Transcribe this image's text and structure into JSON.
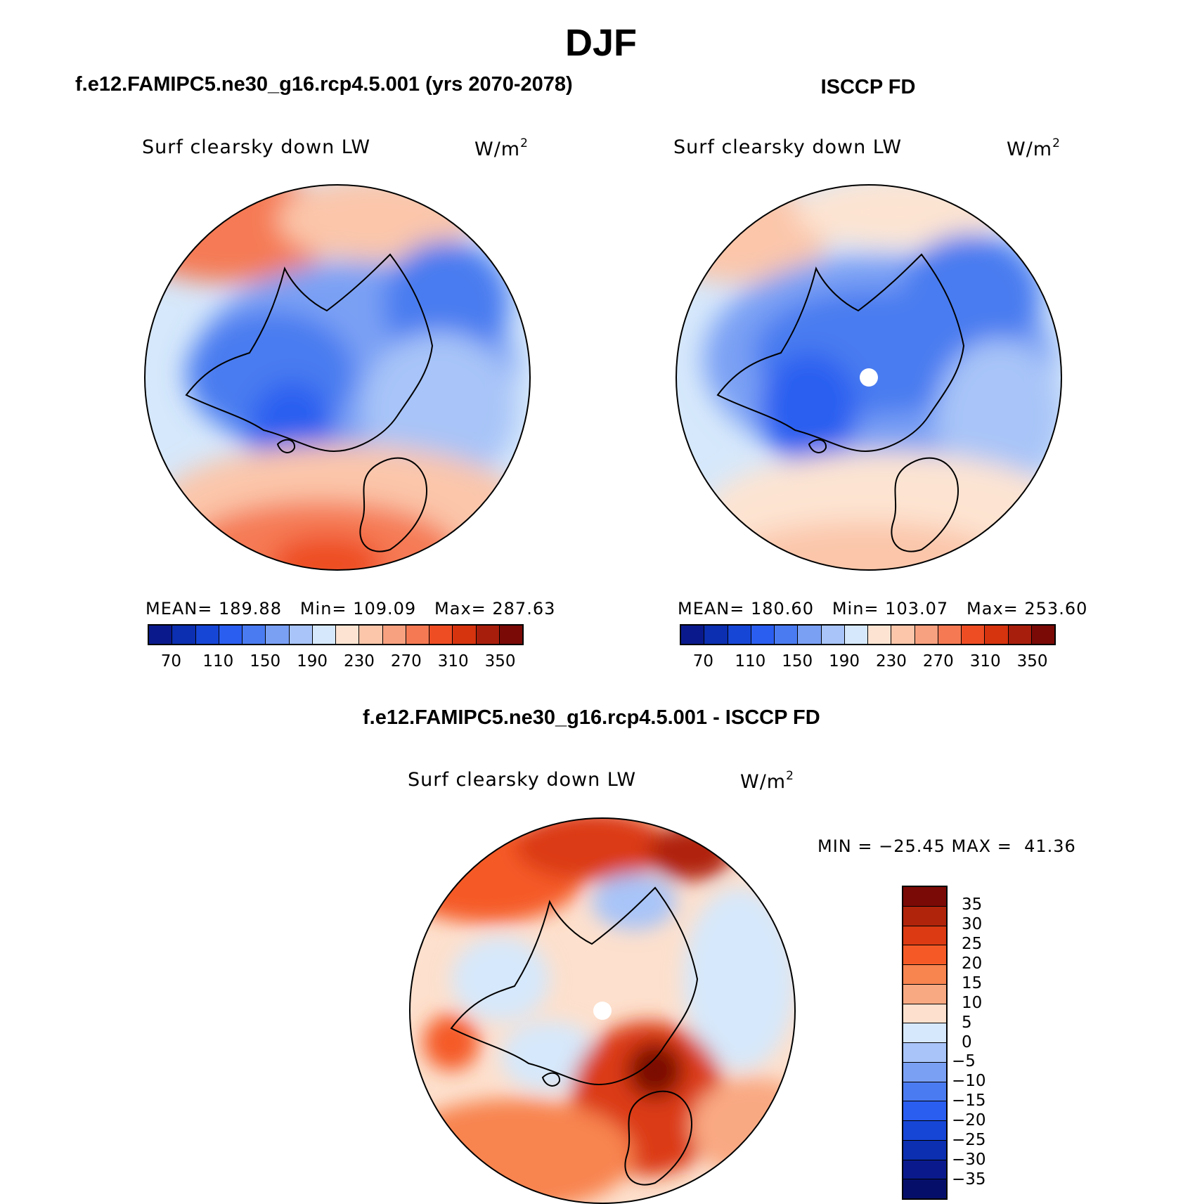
{
  "figure": {
    "season": "DJF"
  },
  "panels": [
    {
      "title": "f.e12.FAMIPC5.ne30_g16.rcp4.5.001 (yrs 2070-2078)",
      "variable": "Surf clearsky down LW",
      "units": "W/m",
      "units_sup": "2",
      "stats": "MEAN= 189.88   Min= 109.09   Max= 287.63",
      "colorbar_ticks": [
        "70",
        "110",
        "150",
        "190",
        "230",
        "270",
        "310",
        "350"
      ]
    },
    {
      "title": "ISCCP FD",
      "variable": "Surf clearsky down LW",
      "units": "W/m",
      "units_sup": "2",
      "stats": "MEAN= 180.60   Min= 103.07   Max= 253.60",
      "colorbar_ticks": [
        "70",
        "110",
        "150",
        "190",
        "230",
        "270",
        "310",
        "350"
      ]
    },
    {
      "title": "f.e12.FAMIPC5.ne30_g16.rcp4.5.001 - ISCCP FD",
      "variable": "Surf clearsky down LW",
      "units": "W/m",
      "units_sup": "2",
      "stats": "MIN = −25.45 MAX =  41.36",
      "colorbar_ticks": [
        "35",
        "30",
        "25",
        "20",
        "15",
        "10",
        "5",
        "0",
        "−5",
        "−10",
        "−15",
        "−20",
        "−25",
        "−30",
        "−35"
      ]
    }
  ],
  "colors": {
    "abs_scale": [
      "#0a1a8c",
      "#0b2fb0",
      "#1646d6",
      "#2a5ef0",
      "#4a7bf0",
      "#7aa0f4",
      "#a8c4f8",
      "#d6e8fb",
      "#fde4d2",
      "#fbc6aa",
      "#f8a180",
      "#f57a54",
      "#ee4d24",
      "#d6330f",
      "#a81e0c",
      "#7a0a06"
    ],
    "diff_scale": [
      "#7a0a06",
      "#b0240b",
      "#db3a12",
      "#f55a26",
      "#f88450",
      "#f9a982",
      "#fde0cd",
      "#d6e8fb",
      "#a8c4f8",
      "#7aa0f4",
      "#4a7bf0",
      "#2a5ef0",
      "#1646d6",
      "#0b2fb0",
      "#0a1a8c",
      "#050f6a"
    ]
  },
  "chart_data": [
    {
      "type": "heatmap",
      "projection": "north polar stereographic",
      "title": "f.e12.FAMIPC5.ne30_g16.rcp4.5.001 (yrs 2070-2078)",
      "variable": "Surf clearsky down LW",
      "units": "W/m2",
      "mean": 189.88,
      "min": 109.09,
      "max": 287.63,
      "contour_levels": [
        70,
        80,
        90,
        100,
        110,
        120,
        130,
        140,
        150,
        160,
        170,
        180,
        190,
        200,
        210,
        220,
        230,
        240,
        250,
        260,
        270,
        280,
        290,
        300,
        310,
        320,
        330,
        340,
        350
      ]
    },
    {
      "type": "heatmap",
      "projection": "north polar stereographic",
      "title": "ISCCP FD",
      "variable": "Surf clearsky down LW",
      "units": "W/m2",
      "mean": 180.6,
      "min": 103.07,
      "max": 253.6,
      "contour_levels": [
        70,
        80,
        90,
        100,
        110,
        120,
        130,
        140,
        150,
        160,
        170,
        180,
        190,
        200,
        210,
        220,
        230,
        240,
        250,
        260,
        270,
        280,
        290,
        300,
        310,
        320,
        330,
        340,
        350
      ]
    },
    {
      "type": "heatmap",
      "projection": "north polar stereographic",
      "title": "f.e12.FAMIPC5.ne30_g16.rcp4.5.001 - ISCCP FD",
      "variable": "Surf clearsky down LW",
      "units": "W/m2",
      "min": -25.45,
      "max": 41.36,
      "contour_levels": [
        -35,
        -30,
        -25,
        -20,
        -15,
        -10,
        -5,
        0,
        5,
        10,
        15,
        20,
        25,
        30,
        35
      ]
    }
  ]
}
